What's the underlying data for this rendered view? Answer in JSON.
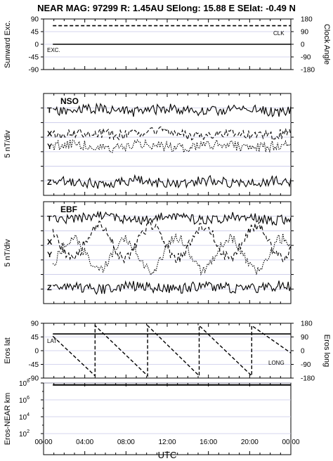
{
  "header": {
    "title": "NEAR MAG: 97299  R: 1.45AU  SElong:   15.88 E  SElat:  -0.49 N"
  },
  "colors": {
    "trace": "#000000",
    "grid": "#c8c8e8",
    "frame": "#000000"
  },
  "xaxis": {
    "label": "UTC",
    "ticks": [
      "00:00",
      "04:00",
      "08:00",
      "12:00",
      "16:00",
      "20:00",
      "00:00"
    ],
    "range_hours": [
      0,
      24
    ]
  },
  "chart_data": [
    {
      "type": "line",
      "panel": "sunward-clock",
      "ylabel_left": "Sunward Exc.",
      "ylabel_right": "Clock Angle",
      "yticks_left": [
        "90",
        "45",
        "0",
        "-45",
        "-90"
      ],
      "yticks_right": [
        "180",
        "90",
        "0",
        "-90",
        "-180"
      ],
      "ylim_left": [
        -90,
        90
      ],
      "ylim_right": [
        -180,
        180
      ],
      "series": [
        {
          "name": "CLK",
          "axis": "right",
          "style": "dashed",
          "x": [
            0.9,
            24
          ],
          "y": [
            132,
            132
          ]
        },
        {
          "name": "EXC.",
          "axis": "left",
          "style": "solid",
          "x": [
            0.9,
            24
          ],
          "y": [
            0,
            0
          ]
        }
      ]
    },
    {
      "type": "line",
      "panel": "NSO",
      "tag": "NSO",
      "ylabel": "5 nT/div",
      "components": [
        {
          "name": "T",
          "style": "solid",
          "level": 1.0,
          "wiggle": 0.18
        },
        {
          "name": "X",
          "style": "dashed",
          "level": 2.7,
          "wiggle": 0.2
        },
        {
          "name": "Y",
          "style": "dotted",
          "level": 3.6,
          "wiggle": 0.18
        },
        {
          "name": "Z",
          "style": "solid",
          "level": 6.2,
          "wiggle": 0.18
        }
      ]
    },
    {
      "type": "line",
      "panel": "EBF",
      "tag": "EBF",
      "ylabel": "5 nT/div",
      "components": [
        {
          "name": "T",
          "style": "solid",
          "level": 1.0,
          "wiggle": 0.2
        },
        {
          "name": "X",
          "style": "dashed",
          "level": 2.7,
          "wiggle": 1.1
        },
        {
          "name": "Y",
          "style": "dotted",
          "level": 3.6,
          "wiggle": 1.1
        },
        {
          "name": "Z",
          "style": "solid",
          "level": 6.0,
          "wiggle": 0.2
        }
      ]
    },
    {
      "type": "line",
      "panel": "eros-position",
      "ylabel_left": "Eros lat",
      "ylabel_right": "Eros long",
      "yticks_left": [
        "90",
        "45",
        "0",
        "-45",
        "-90"
      ],
      "yticks_right": [
        "180",
        "90",
        "0",
        "-90",
        "-180"
      ],
      "ylim_left": [
        -90,
        90
      ],
      "ylim_right": [
        -180,
        180
      ],
      "series": [
        {
          "name": "LAT",
          "axis": "left",
          "style": "solid",
          "x": [
            0.9,
            24
          ],
          "y": [
            55,
            55
          ]
        },
        {
          "name": "LONG",
          "axis": "right",
          "style": "dashed",
          "x": [
            0.9,
            5.0,
            5.0,
            10.1,
            10.1,
            15.1,
            15.1,
            20.2,
            20.2,
            24
          ],
          "y": [
            95,
            -165,
            165,
            -165,
            165,
            -165,
            165,
            -165,
            165,
            -15
          ]
        }
      ]
    },
    {
      "type": "line",
      "panel": "eros-near-distance",
      "ylabel": "Eros-NEAR km",
      "yscale": "log",
      "yticks": [
        "10^8",
        "10^6",
        "10^4",
        "10^2"
      ],
      "ylim": [
        1,
        100000000
      ],
      "series": [
        {
          "name": "Eros-NEAR distance",
          "style": "solid",
          "x": [
            0.9,
            24
          ],
          "y": [
            60000000,
            60000000
          ]
        }
      ]
    }
  ]
}
